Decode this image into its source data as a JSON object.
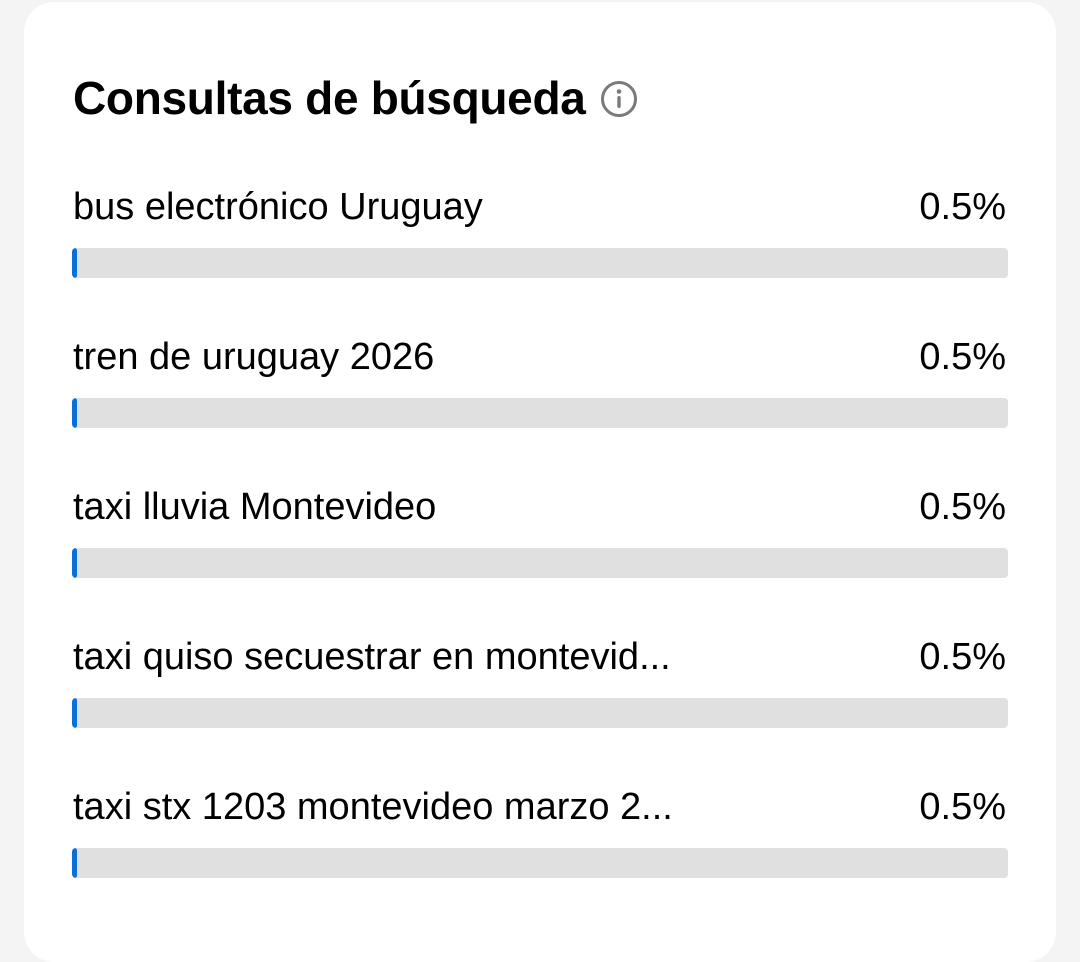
{
  "card": {
    "title": "Consultas de búsqueda",
    "info_icon": "info-circle-icon"
  },
  "colors": {
    "bar_fill": "#0a6fd6",
    "bar_track": "#e0e0e0",
    "background": "#f4f4f4",
    "card": "#ffffff"
  },
  "queries": [
    {
      "label": "bus electrónico Uruguay",
      "value": "0.5%",
      "percent": 0.5
    },
    {
      "label": "tren de uruguay 2026",
      "value": "0.5%",
      "percent": 0.5
    },
    {
      "label": "taxi lluvia Montevideo",
      "value": "0.5%",
      "percent": 0.5
    },
    {
      "label": "taxi quiso secuestrar en montevid...",
      "value": "0.5%",
      "percent": 0.5
    },
    {
      "label": "taxi stx 1203 montevideo marzo 2...",
      "value": "0.5%",
      "percent": 0.5
    }
  ]
}
